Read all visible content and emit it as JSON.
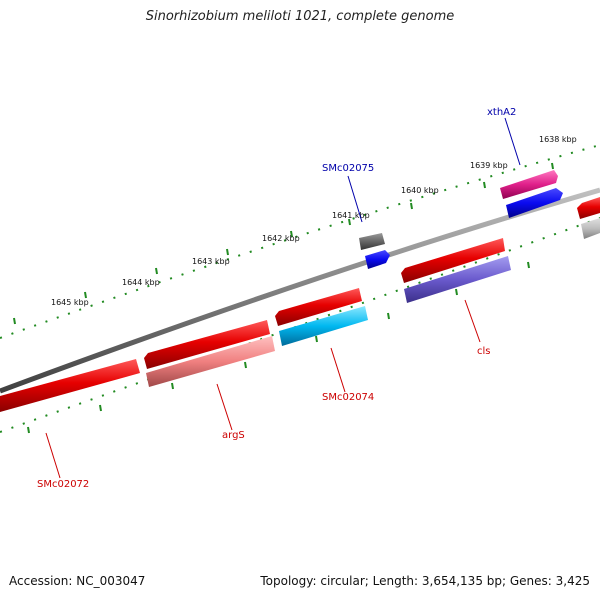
{
  "title": "Sinorhizobium meliloti 1021, complete genome",
  "accession_text": "Accession: NC_003047",
  "summary_text": "Topology: circular; Length: 3,654,135 bp; Genes: 3,425",
  "colors": {
    "backbone": "#808080",
    "tick": "#228b22",
    "label_red": "#cc0000",
    "label_blue": "#0000aa"
  },
  "tick_labels": [
    "1638 kbp",
    "1639 kbp",
    "1640 kbp",
    "1641 kbp",
    "1642 kbp",
    "1643 kbp",
    "1644 kbp",
    "1645 kbp"
  ],
  "genes": [
    {
      "id": "xthA2",
      "label": "xthA2",
      "label_color": "#0000aa",
      "colors": [
        "#e0208a",
        "#1a1aee"
      ]
    },
    {
      "id": "SMc02075",
      "label": "SMc02075",
      "label_color": "#0000aa",
      "colors": [
        "#666666",
        "#1a1aee"
      ]
    },
    {
      "id": "cls",
      "label": "cls",
      "label_color": "#cc0000",
      "colors": [
        "#e0101a",
        "#6655cc"
      ]
    },
    {
      "id": "SMc02074",
      "label": "SMc02074",
      "label_color": "#cc0000",
      "colors": [
        "#e0101a",
        "#00b0e8"
      ]
    },
    {
      "id": "argS",
      "label": "argS",
      "label_color": "#cc0000",
      "colors": [
        "#e0101a",
        "#e87878"
      ]
    },
    {
      "id": "SMc02072",
      "label": "SMc02072",
      "label_color": "#cc0000",
      "colors": [
        "#e0101a"
      ]
    },
    {
      "id": "right-edge-gene",
      "label": "",
      "label_color": "#cc0000",
      "colors": [
        "#e0101a",
        "#aaaaaa"
      ]
    }
  ]
}
